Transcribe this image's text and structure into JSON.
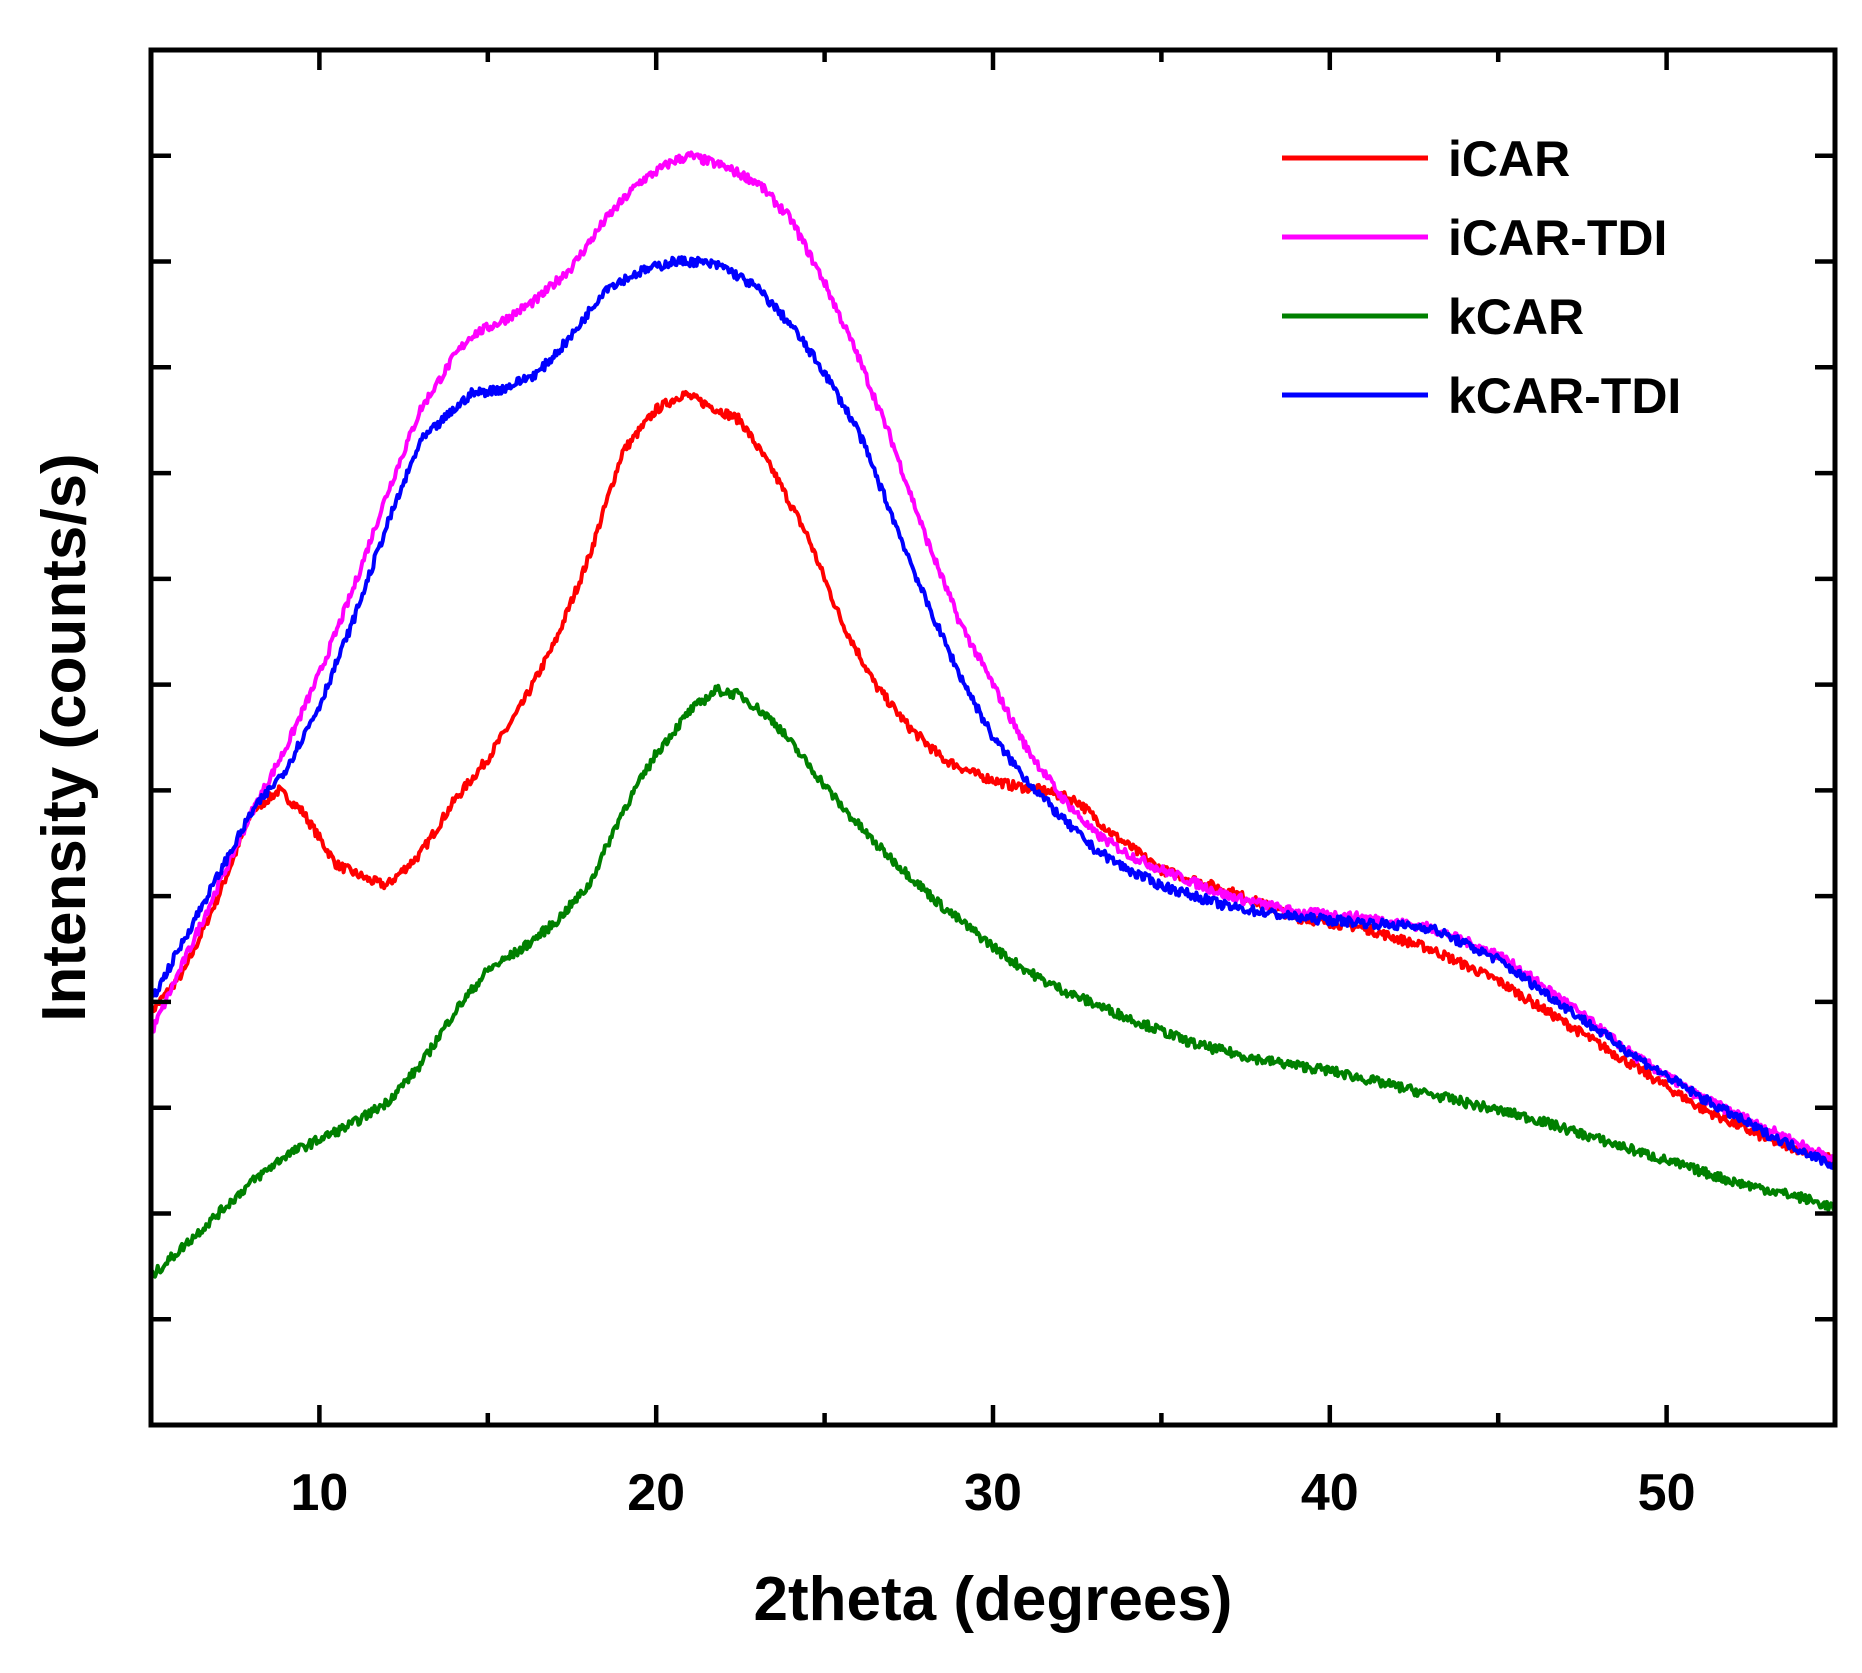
{
  "chart_data": {
    "type": "line",
    "title": "",
    "xlabel": "2theta (degrees)",
    "ylabel": "Intensity (counts/s)",
    "xlim": [
      5,
      55
    ],
    "ylim": [
      0,
      13
    ],
    "x_ticks": [
      10,
      20,
      30,
      40,
      50
    ],
    "x_tick_labels": [
      "10",
      "20",
      "30",
      "40",
      "50"
    ],
    "y_ticks": [
      1,
      2,
      3,
      4,
      5,
      6,
      7,
      8,
      9,
      10,
      11,
      12
    ],
    "y_tick_labels_shown": false,
    "grid": false,
    "legend_position": "top-right",
    "series": [
      {
        "name": "iCAR",
        "color": "#ff0000",
        "x": [
          5,
          6,
          7,
          8,
          8.8,
          9.5,
          10.5,
          11.5,
          12,
          13,
          14,
          15,
          16,
          17,
          18,
          19,
          20,
          20.8,
          21.5,
          22.5,
          23.5,
          24.5,
          25.5,
          26.5,
          27.5,
          28.5,
          29.5,
          30.5,
          31.5,
          32.5,
          33.5,
          35,
          37,
          39,
          41,
          43,
          45,
          47,
          49,
          51,
          53,
          55
        ],
        "y": [
          3.9,
          4.3,
          5.0,
          5.8,
          6.0,
          5.8,
          5.3,
          5.15,
          5.1,
          5.4,
          5.9,
          6.3,
          6.8,
          7.4,
          8.2,
          9.2,
          9.6,
          9.75,
          9.65,
          9.5,
          9.0,
          8.4,
          7.6,
          7.0,
          6.6,
          6.3,
          6.15,
          6.05,
          6.0,
          5.9,
          5.6,
          5.25,
          5.05,
          4.8,
          4.7,
          4.5,
          4.2,
          3.8,
          3.4,
          3.0,
          2.7,
          2.5
        ]
      },
      {
        "name": "iCAR-TDI",
        "color": "#ff00ff",
        "x": [
          5,
          6,
          7,
          8,
          9,
          10,
          11,
          12,
          13,
          14,
          14.5,
          15.5,
          16.5,
          17.5,
          18.5,
          19.5,
          20.5,
          21,
          22,
          23,
          24,
          25,
          26,
          27,
          28,
          29,
          30,
          31,
          32,
          33,
          34,
          35,
          37,
          39,
          41,
          43,
          45,
          47,
          49,
          51,
          53,
          55
        ],
        "y": [
          3.7,
          4.4,
          5.1,
          5.8,
          6.4,
          7.1,
          7.9,
          8.8,
          9.6,
          10.1,
          10.3,
          10.45,
          10.65,
          10.95,
          11.4,
          11.75,
          11.95,
          12.0,
          11.9,
          11.75,
          11.4,
          10.8,
          10.1,
          9.3,
          8.4,
          7.6,
          7.0,
          6.4,
          5.95,
          5.6,
          5.4,
          5.25,
          5.0,
          4.85,
          4.8,
          4.7,
          4.45,
          4.0,
          3.5,
          3.1,
          2.8,
          2.5
        ]
      },
      {
        "name": "kCAR",
        "color": "#008000",
        "x": [
          5,
          6,
          7,
          8,
          9,
          10,
          11,
          12,
          13,
          14,
          15,
          16,
          17,
          18,
          19,
          20,
          21,
          21.8,
          22.5,
          23.5,
          24.5,
          25.5,
          26.5,
          27.5,
          28.5,
          29.5,
          30.5,
          31.5,
          32.5,
          34,
          36,
          38,
          40,
          42,
          44,
          46,
          48,
          50,
          52,
          54,
          55
        ],
        "y": [
          1.4,
          1.7,
          2.0,
          2.3,
          2.55,
          2.7,
          2.85,
          3.05,
          3.4,
          3.9,
          4.3,
          4.5,
          4.75,
          5.1,
          5.8,
          6.35,
          6.75,
          6.95,
          6.9,
          6.65,
          6.25,
          5.85,
          5.5,
          5.2,
          4.9,
          4.65,
          4.4,
          4.2,
          4.05,
          3.85,
          3.6,
          3.45,
          3.35,
          3.2,
          3.05,
          2.9,
          2.7,
          2.5,
          2.3,
          2.15,
          2.05
        ]
      },
      {
        "name": "kCAR-TDI",
        "color": "#0000ff",
        "x": [
          5,
          6,
          7,
          8,
          9,
          10,
          11,
          12,
          13,
          14,
          14.5,
          15.5,
          16.5,
          17.5,
          18.5,
          19.5,
          20.5,
          21.2,
          22,
          23,
          24,
          25,
          26,
          27,
          28,
          29,
          30,
          31,
          32,
          33,
          34,
          35,
          37,
          39,
          41,
          43,
          45,
          47,
          49,
          51,
          53,
          55
        ],
        "y": [
          4.0,
          4.6,
          5.2,
          5.8,
          6.2,
          6.8,
          7.6,
          8.5,
          9.3,
          9.6,
          9.75,
          9.8,
          9.95,
          10.3,
          10.75,
          10.9,
          11.0,
          11.0,
          10.95,
          10.75,
          10.4,
          9.95,
          9.4,
          8.6,
          7.8,
          7.1,
          6.5,
          6.1,
          5.75,
          5.45,
          5.25,
          5.1,
          4.9,
          4.8,
          4.75,
          4.7,
          4.4,
          3.95,
          3.5,
          3.1,
          2.75,
          2.45
        ]
      }
    ]
  }
}
